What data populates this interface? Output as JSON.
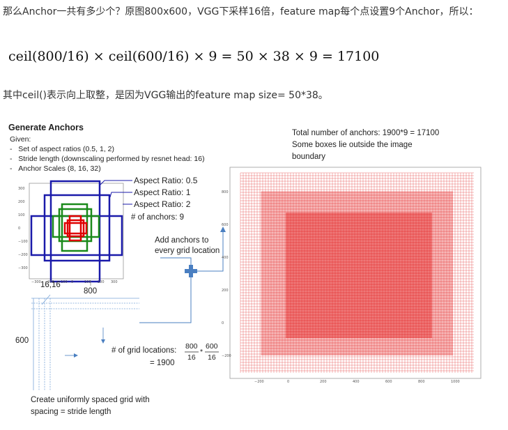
{
  "article": {
    "para1": "那么Anchor一共有多少个？原图800x600，VGG下采样16倍，feature map每个点设置9个Anchor，所以：",
    "formula": "ceil(800/16) × ceil(600/16) × 9 = 50 × 38 × 9 = 17100",
    "para2": "其中ceil()表示向上取整，是因为VGG输出的feature map size= 50*38。"
  },
  "figure": {
    "title": "Generate Anchors",
    "given_label": "Given:",
    "given_items": [
      "Set of aspect ratios (0.5, 1, 2)",
      "Stride length (downscaling performed by resnet head: 16)",
      "Anchor Scales (8, 16, 32)"
    ],
    "aspect_labels": [
      "Aspect Ratio: 0.5",
      "Aspect Ratio: 1",
      "Aspect Ratio: 2"
    ],
    "num_anchors": "# of anchors: 9",
    "add_anchors": [
      "Add anchors to",
      "every grid location"
    ],
    "total_lines": [
      "Total number of anchors: 1900*9 = 17100",
      "Some boxes lie outside the image",
      "boundary"
    ],
    "grid_origin": "16,16",
    "grid_width": "800",
    "grid_height": "600",
    "grid_locations_label": "# of grid locations:",
    "frac1_num": "800",
    "frac1_den": "16",
    "times": "*",
    "frac2_num": "600",
    "frac2_den": "16",
    "grid_result": "= 1900",
    "caption": [
      "Create uniformly spaced grid with",
      "spacing = stride length"
    ],
    "small_plot_yticks": [
      "300",
      "200",
      "100",
      "0",
      "−100",
      "−200",
      "−300"
    ],
    "small_plot_xticks": [
      "−300",
      "−200",
      "−100",
      "0",
      "100",
      "200",
      "300"
    ],
    "big_plot_yticks": [
      "800",
      "600",
      "400",
      "200",
      "0",
      "−200"
    ],
    "big_plot_xticks": [
      "−200",
      "0",
      "200",
      "400",
      "600",
      "800",
      "1000"
    ],
    "colors": {
      "blue": "#1a1aaa",
      "green": "#1a8a1a",
      "red": "#e00000",
      "arrow": "#4a7fc1"
    }
  }
}
